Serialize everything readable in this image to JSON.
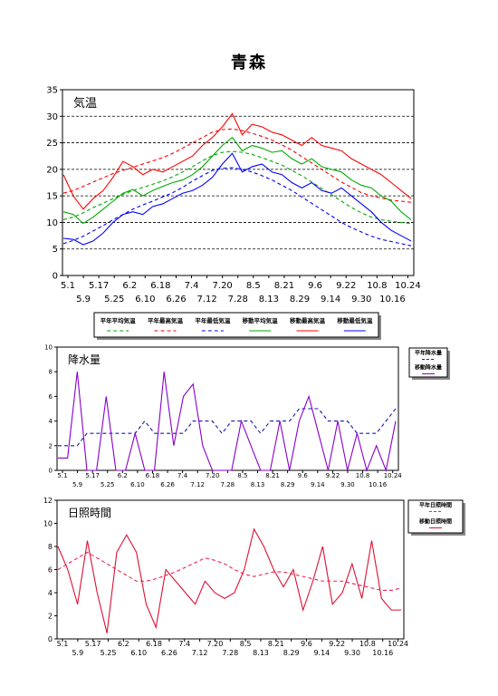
{
  "page_title": "青森",
  "chart_data": [
    {
      "type": "line",
      "title": "気温",
      "ylim": [
        0,
        35
      ],
      "y_ticks": [
        0,
        5,
        10,
        15,
        20,
        25,
        30,
        35
      ],
      "x_ticks_row1": [
        "5.1",
        "5.17",
        "6.2",
        "6.18",
        "7.4",
        "7.20",
        "8.5",
        "8.21",
        "9.6",
        "9.22",
        "10.8",
        "10.24"
      ],
      "x_ticks_row2": [
        "5.9",
        "5.25",
        "6.10",
        "6.26",
        "7.12",
        "7.28",
        "8.13",
        "8.29",
        "9.14",
        "9.30",
        "10.16"
      ],
      "x": [
        0,
        5,
        10,
        15,
        20,
        25,
        30,
        35,
        40,
        45,
        50,
        55,
        60,
        65,
        70,
        75,
        80,
        85,
        90,
        95,
        100,
        105,
        110,
        115,
        120,
        125,
        130,
        135,
        140,
        145,
        150,
        155,
        160,
        165,
        170,
        175
      ],
      "grid": "dashed-horizontal",
      "legend": "bottom",
      "series": [
        {
          "name": "平年平均気温",
          "color": "#00aa00",
          "style": "dashed",
          "values": [
            10.5,
            11.0,
            11.8,
            12.8,
            13.6,
            14.5,
            15.3,
            16.0,
            16.6,
            17.2,
            17.8,
            18.6,
            19.5,
            20.5,
            21.6,
            22.6,
            23.2,
            23.4,
            23.2,
            22.8,
            22.2,
            21.5,
            20.8,
            19.8,
            18.8,
            17.6,
            16.4,
            15.2,
            14.0,
            12.8,
            11.8,
            11.0,
            10.5,
            10.2,
            10.0,
            9.8
          ]
        },
        {
          "name": "平年最高気温",
          "color": "#ff0000",
          "style": "dashed",
          "values": [
            15.5,
            16.0,
            16.8,
            17.6,
            18.4,
            19.2,
            19.8,
            20.4,
            21.0,
            21.6,
            22.2,
            23.0,
            24.0,
            25.0,
            26.0,
            27.0,
            27.5,
            27.6,
            27.3,
            26.8,
            26.2,
            25.5,
            24.6,
            23.6,
            22.4,
            21.2,
            20.0,
            18.8,
            17.6,
            16.6,
            15.6,
            15.0,
            14.6,
            14.2,
            14.0,
            13.8
          ]
        },
        {
          "name": "平年最低気温",
          "color": "#0000ff",
          "style": "dashed",
          "values": [
            6.0,
            6.6,
            7.4,
            8.4,
            9.4,
            10.5,
            11.5,
            12.5,
            13.3,
            14.0,
            14.8,
            15.6,
            16.6,
            17.8,
            18.8,
            19.8,
            20.2,
            20.3,
            20.0,
            19.5,
            18.8,
            18.0,
            17.0,
            16.0,
            14.8,
            13.6,
            12.4,
            11.2,
            10.0,
            9.0,
            8.2,
            7.4,
            6.8,
            6.4,
            6.0,
            5.6
          ]
        },
        {
          "name": "移動平均気温",
          "color": "#00aa00",
          "style": "solid",
          "values": [
            12.0,
            11.5,
            9.8,
            11.0,
            12.5,
            14.0,
            15.5,
            16.2,
            15.0,
            16.0,
            16.8,
            17.5,
            18.0,
            19.0,
            20.5,
            22.5,
            24.5,
            26.0,
            23.5,
            24.5,
            24.0,
            23.2,
            23.5,
            22.0,
            21.0,
            22.0,
            20.5,
            20.0,
            19.5,
            18.0,
            17.0,
            16.5,
            15.0,
            14.0,
            12.0,
            10.5
          ]
        },
        {
          "name": "移動最高気温",
          "color": "#ff0000",
          "style": "solid",
          "values": [
            19.0,
            15.0,
            12.5,
            14.5,
            16.0,
            18.5,
            21.5,
            20.5,
            19.0,
            20.0,
            19.5,
            20.5,
            21.5,
            22.5,
            24.5,
            26.0,
            28.0,
            30.5,
            26.5,
            28.5,
            28.0,
            27.0,
            26.5,
            25.5,
            24.5,
            26.0,
            24.5,
            24.0,
            23.5,
            22.0,
            21.0,
            20.0,
            19.0,
            17.5,
            16.0,
            14.5
          ]
        },
        {
          "name": "移動最低気温",
          "color": "#0000ff",
          "style": "solid",
          "values": [
            7.0,
            6.8,
            5.8,
            6.5,
            8.0,
            10.0,
            11.5,
            12.0,
            11.5,
            13.0,
            13.5,
            14.5,
            15.5,
            16.0,
            17.0,
            18.5,
            21.0,
            23.0,
            19.5,
            20.5,
            21.0,
            19.5,
            19.0,
            17.5,
            16.5,
            17.5,
            16.0,
            15.5,
            16.5,
            15.0,
            13.5,
            12.0,
            10.0,
            8.5,
            7.5,
            6.5
          ]
        }
      ]
    },
    {
      "type": "line",
      "title": "降水量",
      "ylim": [
        0,
        10
      ],
      "y_ticks": [
        0,
        2,
        4,
        6,
        8,
        10
      ],
      "x_ticks_row1": [
        "5.1",
        "5.17",
        "6.2",
        "6.18",
        "7.4",
        "7.20",
        "8.5",
        "8.21",
        "9.6",
        "9.22",
        "10.8",
        "10.24"
      ],
      "x_ticks_row2": [
        "5.9",
        "5.25",
        "6.10",
        "6.26",
        "7.12",
        "7.28",
        "8.13",
        "8.29",
        "9.14",
        "9.30",
        "10.16"
      ],
      "x": [
        0,
        5,
        10,
        15,
        20,
        25,
        30,
        35,
        40,
        45,
        50,
        55,
        60,
        65,
        70,
        75,
        80,
        85,
        90,
        95,
        100,
        105,
        110,
        115,
        120,
        125,
        130,
        135,
        140,
        145,
        150,
        155,
        160,
        165,
        170,
        175
      ],
      "legend": "right",
      "series": [
        {
          "name": "平年降水量",
          "color": "#1a1aaa",
          "style": "dashed",
          "values": [
            2.0,
            2.0,
            2.0,
            3.0,
            3.0,
            3.0,
            3.0,
            3.0,
            3.0,
            4.0,
            3.0,
            3.0,
            3.0,
            3.0,
            4.0,
            4.0,
            4.0,
            3.0,
            4.0,
            4.0,
            4.0,
            3.0,
            4.0,
            4.0,
            4.0,
            5.0,
            5.0,
            5.0,
            4.0,
            4.0,
            4.0,
            3.0,
            3.0,
            3.0,
            4.0,
            5.0
          ]
        },
        {
          "name": "移動降水量",
          "color": "#8800cc",
          "style": "solid",
          "values": [
            1.0,
            1.0,
            8.0,
            0.0,
            0.0,
            6.0,
            0.0,
            0.0,
            3.0,
            0.0,
            0.0,
            8.0,
            2.0,
            6.0,
            7.0,
            2.0,
            0.0,
            0.0,
            0.0,
            4.0,
            2.0,
            0.0,
            0.0,
            4.0,
            0.0,
            4.0,
            6.0,
            3.0,
            0.0,
            4.0,
            0.0,
            3.0,
            0.0,
            2.0,
            0.0,
            4.0
          ]
        }
      ]
    },
    {
      "type": "line",
      "title": "日照時間",
      "ylim": [
        0,
        12
      ],
      "y_ticks": [
        0,
        2,
        4,
        6,
        8,
        10,
        12
      ],
      "x_ticks_row1": [
        "5.1",
        "5.17",
        "6.2",
        "6.18",
        "7.4",
        "7.20",
        "8.5",
        "8.21",
        "9.6",
        "9.22",
        "10.8",
        "10.24"
      ],
      "x_ticks_row2": [
        "5.9",
        "5.25",
        "6.10",
        "6.26",
        "7.12",
        "7.28",
        "8.13",
        "8.29",
        "9.14",
        "9.30",
        "10.16"
      ],
      "x": [
        0,
        5,
        10,
        15,
        20,
        25,
        30,
        35,
        40,
        45,
        50,
        55,
        60,
        65,
        70,
        75,
        80,
        85,
        90,
        95,
        100,
        105,
        110,
        115,
        120,
        125,
        130,
        135,
        140,
        145,
        150,
        155,
        160,
        165,
        170,
        175
      ],
      "legend": "right",
      "series": [
        {
          "name": "平年日照時間",
          "color": "#ee2255",
          "style": "dashed",
          "values": [
            6.0,
            6.5,
            7.0,
            7.5,
            7.0,
            6.5,
            6.0,
            5.5,
            5.0,
            5.0,
            5.2,
            5.5,
            5.8,
            6.2,
            6.6,
            7.0,
            6.8,
            6.5,
            6.0,
            5.6,
            5.4,
            5.6,
            5.8,
            5.8,
            5.6,
            5.4,
            5.2,
            5.0,
            5.0,
            5.0,
            4.8,
            4.6,
            4.4,
            4.2,
            4.2,
            4.4
          ]
        },
        {
          "name": "移動日照時間",
          "color": "#dd1133",
          "style": "solid",
          "values": [
            8.0,
            6.0,
            3.0,
            8.5,
            4.0,
            0.5,
            7.5,
            9.0,
            7.5,
            3.0,
            1.0,
            6.0,
            5.0,
            4.0,
            3.0,
            5.0,
            4.0,
            3.5,
            4.0,
            6.0,
            9.5,
            8.0,
            6.0,
            4.5,
            6.0,
            2.5,
            5.0,
            8.0,
            3.0,
            4.0,
            6.5,
            3.5,
            8.5,
            3.5,
            2.5,
            2.5
          ]
        }
      ]
    }
  ]
}
